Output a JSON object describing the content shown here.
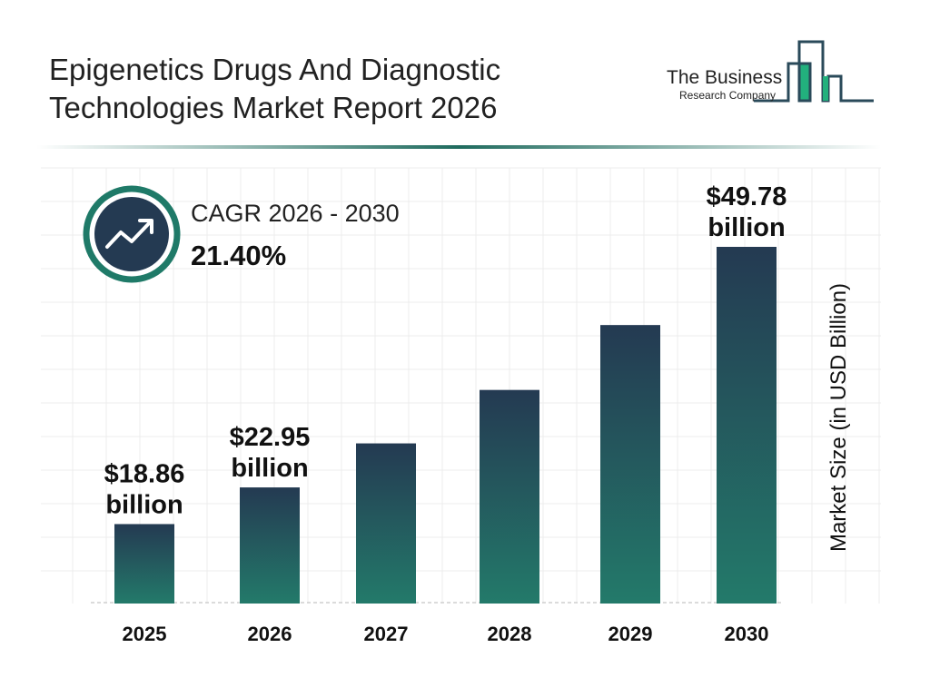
{
  "header": {
    "title_line1": "Epigenetics Drugs And Diagnostic",
    "title_line2": "Technologies Market Report 2026"
  },
  "logo": {
    "line1": "The Business",
    "line2": "Research Company"
  },
  "cagr": {
    "label": "CAGR 2026 - 2030",
    "value": "21.40%",
    "icon": "trending-up-icon"
  },
  "colors": {
    "bar_top": "#243a52",
    "bar_bottom": "#237a6a",
    "accent": "#1f7a68",
    "logo_green": "#22b07d",
    "logo_dark": "#2a4a5a"
  },
  "chart_data": {
    "type": "bar",
    "title": "Epigenetics Drugs And Diagnostic Technologies Market Report 2026",
    "ylabel": "Market Size (in USD Billion)",
    "xlabel": "",
    "categories": [
      "2025",
      "2026",
      "2027",
      "2028",
      "2029",
      "2030"
    ],
    "values": [
      18.86,
      22.95,
      27.86,
      33.82,
      41.06,
      49.78
    ],
    "data_labels": [
      {
        "index": 0,
        "line1": "$18.86",
        "line2": "billion"
      },
      {
        "index": 1,
        "line1": "$22.95",
        "line2": "billion"
      },
      {
        "index": 5,
        "line1": "$49.78",
        "line2": "billion"
      }
    ],
    "ylim": [
      10,
      50
    ],
    "grid": true
  }
}
